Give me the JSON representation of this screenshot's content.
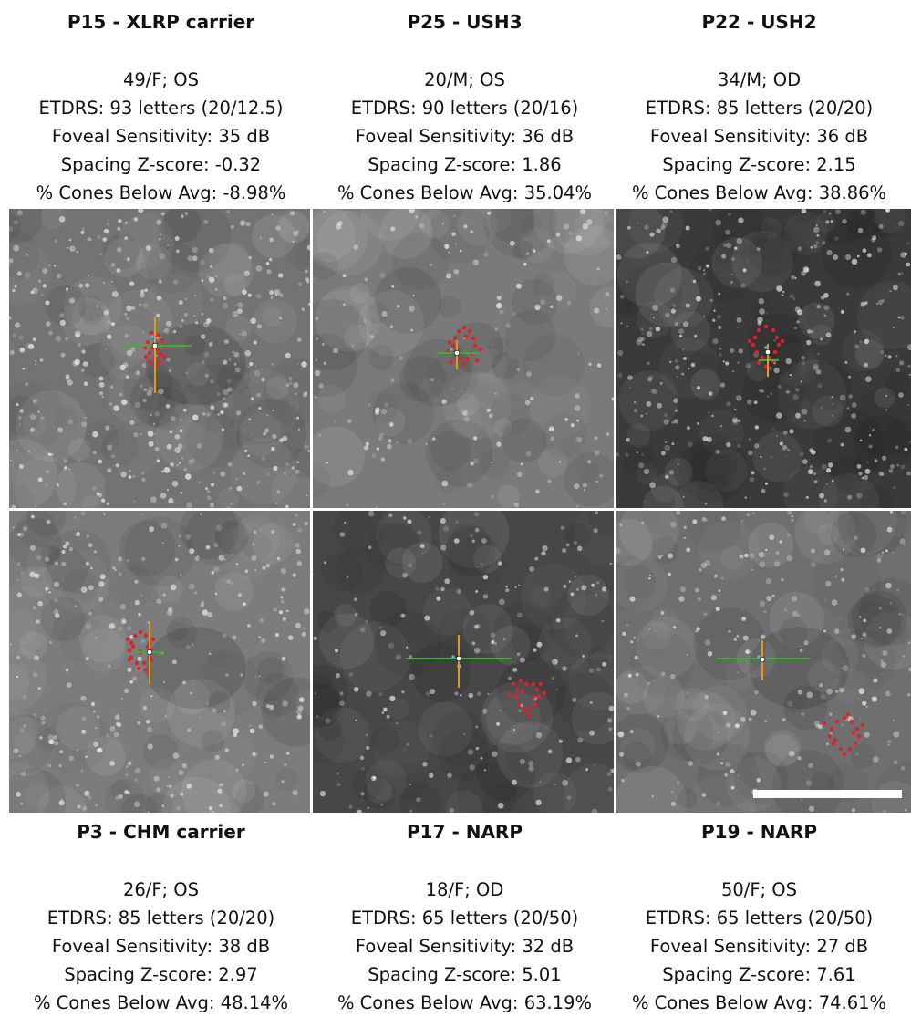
{
  "panels": [
    {
      "title": "P15 - XLRP carrier",
      "demographics": "49/F; OS",
      "etdrs": "ETDRS: 93 letters (20/12.5)",
      "foveal_sensitivity": "Foveal Sensitivity: 35 dB",
      "spacing_z": "Spacing Z-score: -0.32",
      "cones_below": "% Cones Below Avg: -8.98%"
    },
    {
      "title": "P25 - USH3",
      "demographics": "20/M; OS",
      "etdrs": "ETDRS: 90 letters (20/16)",
      "foveal_sensitivity": "Foveal Sensitivity: 36 dB",
      "spacing_z": "Spacing Z-score: 1.86",
      "cones_below": "% Cones Below Avg: 35.04%"
    },
    {
      "title": "P22 - USH2",
      "demographics": "34/M; OD",
      "etdrs": "ETDRS: 85 letters (20/20)",
      "foveal_sensitivity": "Foveal Sensitivity: 36 dB",
      "spacing_z": "Spacing Z-score: 2.15",
      "cones_below": "% Cones Below Avg: 38.86%"
    },
    {
      "title": "P3 - CHM carrier",
      "demographics": "26/F; OS",
      "etdrs": "ETDRS: 85 letters (20/20)",
      "foveal_sensitivity": "Foveal Sensitivity: 38 dB",
      "spacing_z": "Spacing Z-score: 2.97",
      "cones_below": "% Cones Below Avg: 48.14%"
    },
    {
      "title": "P17 - NARP",
      "demographics": "18/F; OD",
      "etdrs": "ETDRS: 65 letters (20/50)",
      "foveal_sensitivity": "Foveal Sensitivity: 32 dB",
      "spacing_z": "Spacing Z-score: 5.01",
      "cones_below": "% Cones Below Avg: 63.19%"
    },
    {
      "title": "P19 - NARP",
      "demographics": "50/F; OS",
      "etdrs": "ETDRS: 65 letters (20/50)",
      "foveal_sensitivity": "Foveal Sensitivity: 27 dB",
      "spacing_z": "Spacing Z-score: 7.61",
      "cones_below": "% Cones Below Avg: 74.61%"
    }
  ],
  "colors": {
    "stimulus_dots": "#e3202a",
    "horizontal_line": "#3cb22b",
    "vertical_line": "#e29a1c",
    "prl_marker": "#ffffff",
    "pcd_marker": "#4fb6e0",
    "scale_bar": "#ffffff"
  }
}
